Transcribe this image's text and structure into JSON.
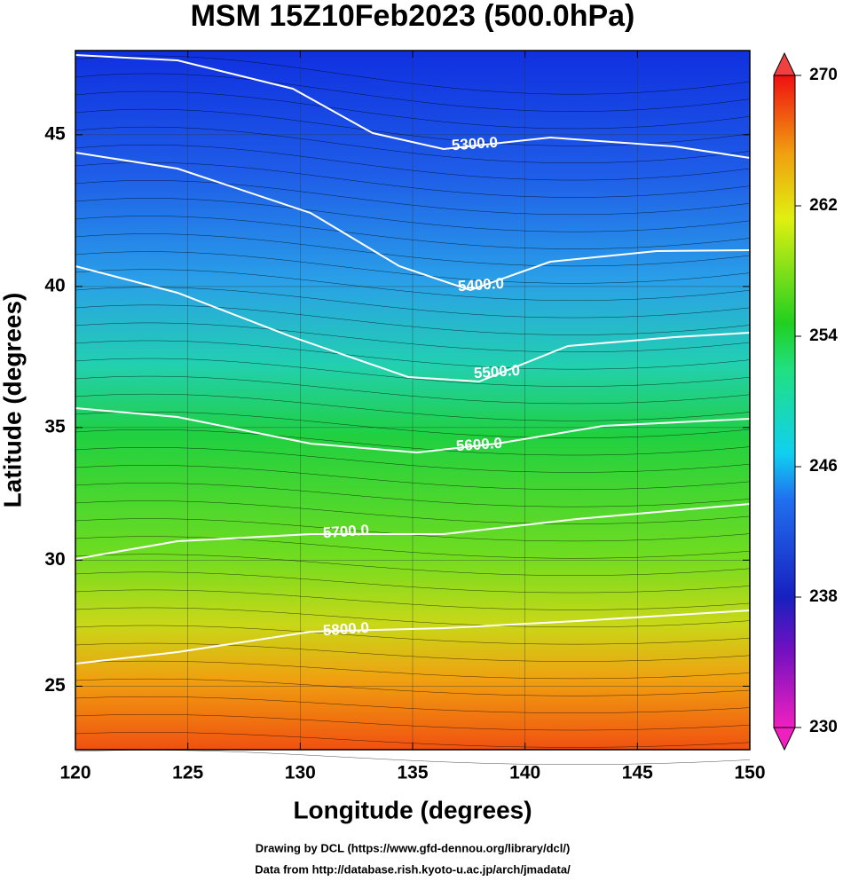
{
  "header": {
    "title": "MSM 15Z10Feb2023 (500.0hPa)"
  },
  "chart_data": {
    "type": "map",
    "x_label": "Longitude (degrees)",
    "y_label": "Latitude  (degrees)",
    "xlim": [
      120,
      150
    ],
    "ylim": [
      22.4,
      47.6
    ],
    "xticks": [
      120,
      125,
      130,
      135,
      140,
      145,
      150
    ],
    "yticks": [
      25,
      30,
      35,
      40,
      45
    ],
    "grid": true,
    "contours": [
      {
        "value": 5300,
        "label": "5300.0"
      },
      {
        "value": 5400,
        "label": "5400.0"
      },
      {
        "value": 5500,
        "label": "5500.0"
      },
      {
        "value": 5600,
        "label": "5600.0"
      },
      {
        "value": 5700,
        "label": "5700.0"
      },
      {
        "value": 5800,
        "label": "5800.0"
      }
    ],
    "colorbar": {
      "lim": [
        230,
        270
      ],
      "ticks": [
        230,
        238,
        246,
        254,
        262,
        270
      ]
    }
  },
  "footer": [
    "Drawing by DCL (https://www.gfd-dennou.org/library/dcl/)",
    "Data from http://database.rish.kyoto-u.ac.jp/arch/jmadata/"
  ]
}
